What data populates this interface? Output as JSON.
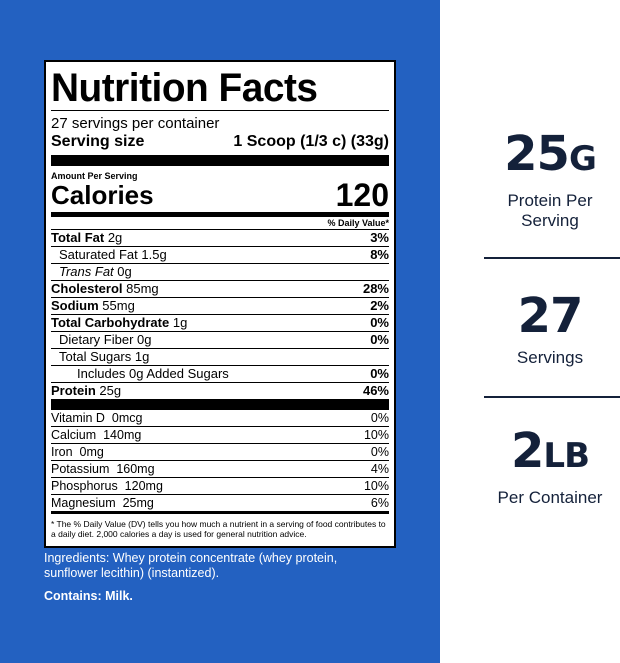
{
  "label": {
    "title": "Nutrition Facts",
    "servings": "27 servings per container",
    "serving_size_label": "Serving size",
    "serving_size": "1 Scoop (1/3 c) (33g)",
    "amount_per_serving": "Amount Per Serving",
    "calories_label": "Calories",
    "calories": "120",
    "dv_header": "% Daily Value*",
    "nutrients": [
      {
        "name": "Total Fat",
        "amount": "2g",
        "dv": "3%"
      },
      {
        "name": "Saturated Fat",
        "amount": "1.5g",
        "dv": "8%"
      },
      {
        "name": "Trans Fat",
        "amount": "0g"
      },
      {
        "name": "Cholesterol",
        "amount": "85mg",
        "dv": "28%"
      },
      {
        "name": "Sodium",
        "amount": "55mg",
        "dv": "2%"
      },
      {
        "name": "Total Carbohydrate",
        "amount": "1g",
        "dv": "0%"
      },
      {
        "name": "Dietary Fiber",
        "amount": "0g",
        "dv": "0%"
      },
      {
        "name": "Total Sugars",
        "amount": "1g"
      },
      {
        "name": "Includes 0g Added Sugars",
        "dv": "0%"
      },
      {
        "name": "Protein",
        "amount": "25g",
        "dv": "46%"
      }
    ],
    "vitamins": [
      {
        "name": "Vitamin D",
        "amount": "0mcg",
        "dv": "0%"
      },
      {
        "name": "Calcium",
        "amount": "140mg",
        "dv": "10%"
      },
      {
        "name": "Iron",
        "amount": "0mg",
        "dv": "0%"
      },
      {
        "name": "Potassium",
        "amount": "160mg",
        "dv": "4%"
      },
      {
        "name": "Phosphorus",
        "amount": "120mg",
        "dv": "10%"
      },
      {
        "name": "Magnesium",
        "amount": "25mg",
        "dv": "6%"
      }
    ],
    "footnote": "* The % Daily Value (DV) tells you how much a nutrient in a serving of food contributes to a daily diet. 2,000 calories a day is used for general nutrition advice."
  },
  "ingredients": "Ingredients: Whey protein concentrate (whey protein, sunflower lecithin) (instantized).",
  "contains": "Contains: Milk.",
  "stats": [
    {
      "value": "25",
      "unit": "G",
      "label": "Protein Per Serving"
    },
    {
      "value": "27",
      "label": "Servings"
    },
    {
      "value": "2",
      "unit": "LB",
      "label": "Per Container"
    }
  ]
}
